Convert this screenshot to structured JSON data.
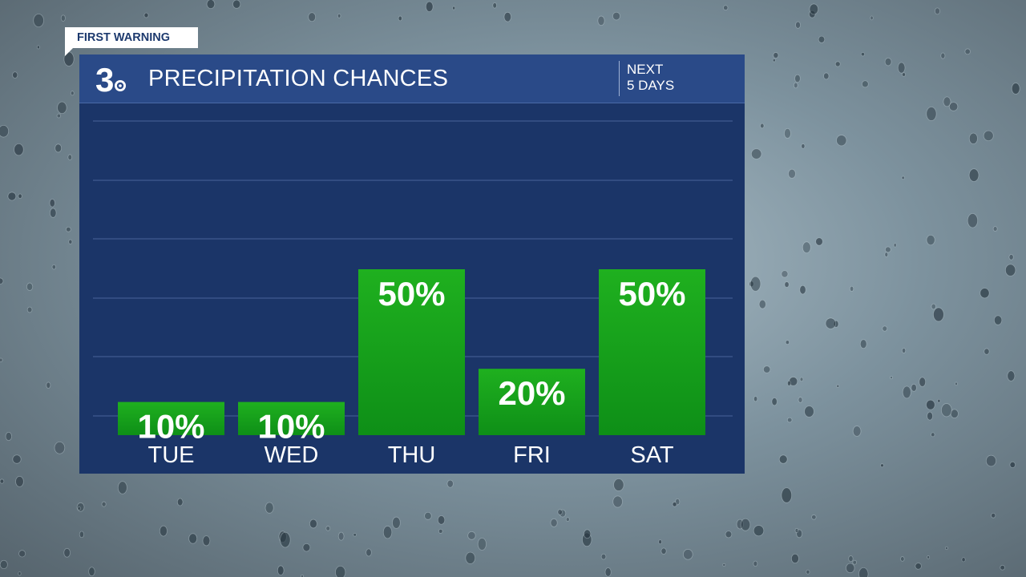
{
  "badge": "FIRST WARNING",
  "header": {
    "logo_text": "3",
    "title": "PRECIPITATION CHANCES",
    "subtitle_line1": "NEXT",
    "subtitle_line2": "5 DAYS"
  },
  "chart_data": {
    "type": "bar",
    "categories": [
      "TUE",
      "WED",
      "THU",
      "FRI",
      "SAT"
    ],
    "values": [
      10,
      10,
      50,
      20,
      50
    ],
    "value_labels": [
      "10%",
      "10%",
      "50%",
      "20%",
      "50%"
    ],
    "ylim": [
      0,
      100
    ],
    "grid": true,
    "bar_color": "#1da51d"
  },
  "colors": {
    "header_bg": "#2a4a88",
    "panel_bg": "#1b3568",
    "bar_top": "#1fb01f",
    "bar_bottom": "#0e8f17"
  }
}
